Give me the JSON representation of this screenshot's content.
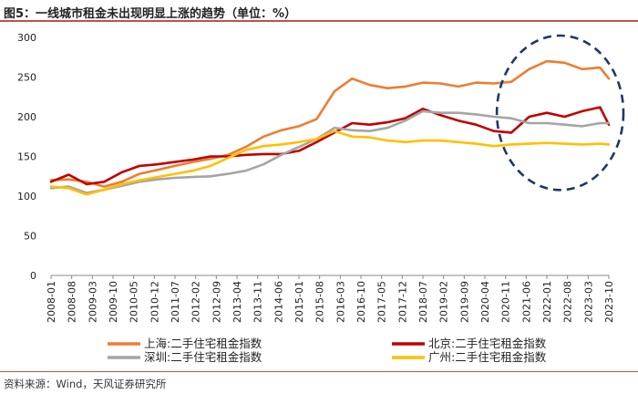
{
  "title": "图5：一线城市租金未出现明显上涨的趋势（单位：%）",
  "source": "资料来源：Wind，天风证券研究所",
  "chart_data": {
    "type": "line",
    "title": "图5：一线城市租金未出现明显上涨的趋势（单位：%）",
    "xlabel": "",
    "ylabel": "",
    "ylim": [
      0,
      300
    ],
    "yticks": [
      0,
      50,
      100,
      150,
      200,
      250,
      300
    ],
    "grid": false,
    "legend_position": "bottom",
    "x_tick_labels": [
      "2008-01",
      "2008-08",
      "2009-03",
      "2009-10",
      "2010-05",
      "2010-12",
      "2011-07",
      "2012-02",
      "2012-09",
      "2013-04",
      "2013-11",
      "2014-06",
      "2015-01",
      "2015-08",
      "2016-03",
      "2016-10",
      "2017-05",
      "2017-12",
      "2018-07",
      "2019-02",
      "2019-09",
      "2020-04",
      "2020-11",
      "2021-06",
      "2022-01",
      "2022-08",
      "2023-03",
      "2023-10"
    ],
    "x": [
      "2008-01",
      "2008-07",
      "2009-01",
      "2009-07",
      "2010-01",
      "2010-07",
      "2011-01",
      "2011-07",
      "2012-01",
      "2012-07",
      "2013-01",
      "2013-07",
      "2014-01",
      "2014-07",
      "2015-01",
      "2015-07",
      "2016-01",
      "2016-07",
      "2017-01",
      "2017-07",
      "2018-01",
      "2018-07",
      "2019-01",
      "2019-07",
      "2020-01",
      "2020-07",
      "2021-01",
      "2021-07",
      "2022-01",
      "2022-07",
      "2023-01",
      "2023-07",
      "2023-10"
    ],
    "series": [
      {
        "name": "上海:二手住宅租金指数",
        "color": "#ed7d31",
        "values": [
          120,
          121,
          118,
          112,
          118,
          128,
          133,
          138,
          143,
          147,
          152,
          162,
          175,
          183,
          188,
          197,
          232,
          248,
          240,
          236,
          238,
          243,
          242,
          238,
          243,
          242,
          244,
          260,
          270,
          268,
          260,
          262,
          248
        ]
      },
      {
        "name": "北京:二手住宅租金指数",
        "color": "#c00000",
        "values": [
          118,
          127,
          115,
          118,
          130,
          138,
          140,
          143,
          146,
          150,
          150,
          152,
          153,
          153,
          157,
          168,
          180,
          192,
          190,
          193,
          198,
          210,
          202,
          195,
          190,
          182,
          180,
          200,
          205,
          200,
          207,
          212,
          190
        ]
      },
      {
        "name": "深圳:二手住宅租金指数",
        "color": "#a5a5a5",
        "values": [
          110,
          112,
          104,
          108,
          113,
          118,
          121,
          123,
          124,
          125,
          128,
          132,
          140,
          152,
          162,
          172,
          186,
          183,
          182,
          186,
          195,
          207,
          205,
          205,
          203,
          200,
          198,
          192,
          192,
          190,
          188,
          192,
          192
        ]
      },
      {
        "name": "广州:二手住宅租金指数",
        "color": "#ffc000",
        "values": [
          112,
          110,
          102,
          108,
          115,
          120,
          124,
          128,
          132,
          138,
          148,
          158,
          163,
          165,
          168,
          172,
          182,
          175,
          174,
          170,
          168,
          170,
          170,
          168,
          166,
          163,
          165,
          166,
          167,
          166,
          165,
          166,
          165
        ]
      }
    ],
    "annotations": [
      {
        "type": "dashed-ellipse",
        "color": "#203864",
        "x_from": "2021-01",
        "x_to": "2023-10",
        "y_from": 110,
        "y_to": 300
      }
    ]
  }
}
